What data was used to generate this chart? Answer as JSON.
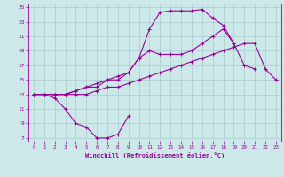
{
  "xlabel": "Windchill (Refroidissement éolien,°C)",
  "background_color": "#cce8e8",
  "line_color": "#990099",
  "grid_color": "#aacccc",
  "xlim": [
    -0.5,
    23.5
  ],
  "ylim": [
    6.5,
    25.5
  ],
  "yticks": [
    7,
    9,
    11,
    13,
    15,
    17,
    19,
    21,
    23,
    25
  ],
  "xticks": [
    0,
    1,
    2,
    3,
    4,
    5,
    6,
    7,
    8,
    9,
    10,
    11,
    12,
    13,
    14,
    15,
    16,
    17,
    18,
    19,
    20,
    21,
    22,
    23
  ],
  "series": [
    {
      "x": [
        0,
        1,
        2,
        3,
        4,
        5,
        6,
        7,
        8,
        9
      ],
      "y": [
        13,
        13,
        12.5,
        11,
        9,
        8.5,
        7,
        7,
        7.5,
        10
      ]
    },
    {
      "x": [
        0,
        1,
        2,
        3,
        4,
        5,
        6,
        7,
        8,
        9,
        10,
        11,
        12,
        13,
        14,
        15,
        16,
        17,
        18,
        19,
        20,
        21,
        22,
        23
      ],
      "y": [
        13,
        13,
        13,
        13,
        13,
        13,
        13.5,
        14,
        14,
        14.5,
        15,
        15.5,
        16,
        16.5,
        17,
        17.5,
        18,
        18.5,
        19,
        19.5,
        20,
        20,
        16.5,
        15
      ]
    },
    {
      "x": [
        0,
        1,
        2,
        3,
        4,
        5,
        6,
        7,
        8,
        9,
        10,
        11,
        12,
        13,
        14,
        15,
        16,
        17,
        18,
        19
      ],
      "y": [
        13,
        13,
        13,
        13,
        13.5,
        14,
        14.5,
        15,
        15.5,
        16,
        18,
        22,
        24.3,
        24.5,
        24.5,
        24.5,
        24.7,
        23.5,
        22.5,
        20
      ]
    },
    {
      "x": [
        0,
        1,
        2,
        3,
        4,
        5,
        6,
        7,
        8,
        9,
        10,
        11,
        12,
        13,
        14,
        15,
        16,
        17,
        18,
        19,
        20,
        21
      ],
      "y": [
        13,
        13,
        13,
        13,
        13.5,
        14,
        14,
        15,
        15,
        16,
        18,
        19,
        18.5,
        18.5,
        18.5,
        19,
        20,
        21,
        22,
        20,
        17,
        16.5
      ]
    }
  ]
}
